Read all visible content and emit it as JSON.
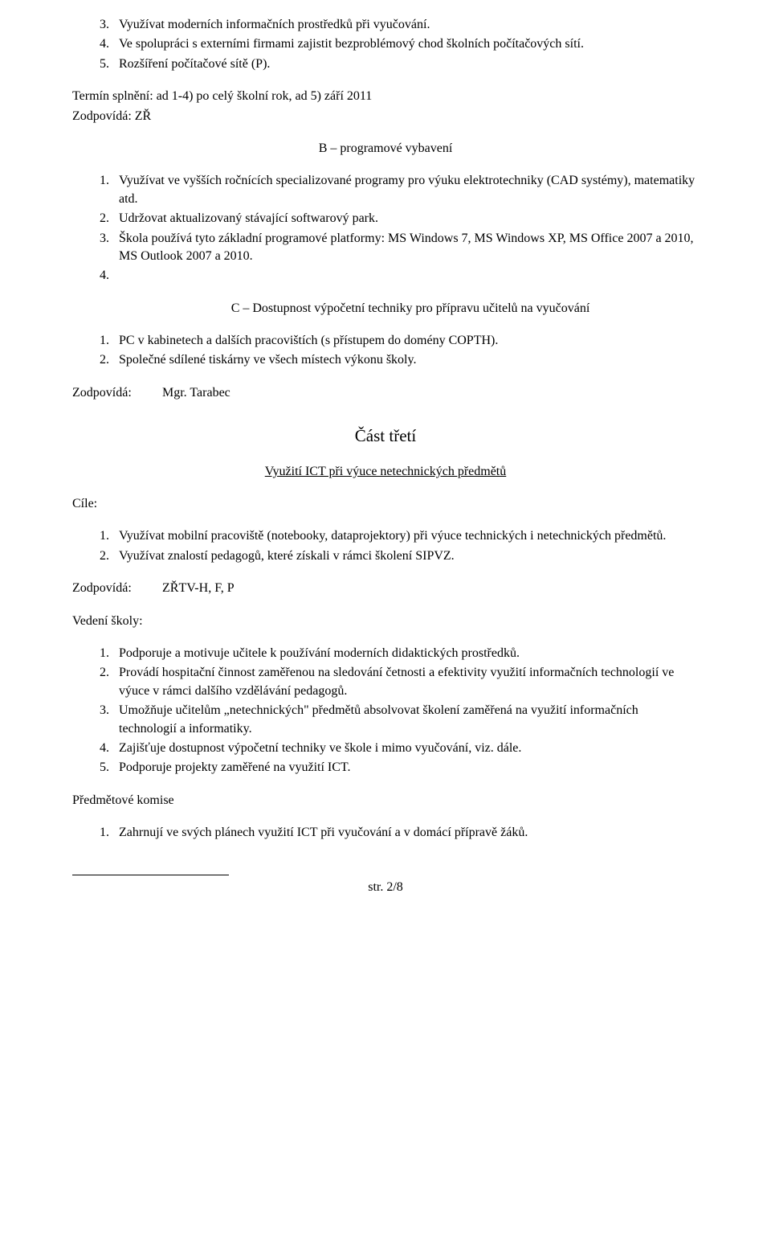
{
  "list1": {
    "item3_num": "3.",
    "item3_text": "Využívat moderních informačních prostředků při vyučování.",
    "item4_num": "4.",
    "item4_text": "Ve spolupráci s externími firmami zajistit bezproblémový chod školních počítačových sítí.",
    "item5_num": "5.",
    "item5_text": "Rozšíření počítačové sítě (P)."
  },
  "termin": {
    "line1": "Termín splnění: ad 1-4) po celý školní rok, ad 5) září 2011",
    "line2": "Zodpovídá: ZŘ"
  },
  "section_b_title": "B – programové vybavení",
  "list2": {
    "item1_num": "1.",
    "item1_text": "Využívat ve vyšších ročnících specializované programy pro výuku elektrotechniky (CAD systémy), matematiky atd.",
    "item2_num": "2.",
    "item2_text": "Udržovat aktualizovaný stávající softwarový park.",
    "item3_num": "3.",
    "item3_text": "Škola používá tyto základní programové platformy: MS Windows 7, MS Windows XP, MS Office 2007 a 2010, MS Outlook 2007 a 2010.",
    "item4_num": "4.",
    "item4_text": ""
  },
  "section_c_title": "C – Dostupnost výpočetní techniky pro přípravu učitelů na vyučování",
  "list3": {
    "item1_num": "1.",
    "item1_text": "PC v kabinetech a dalších pracovištích (s přístupem do domény COPTH).",
    "item2_num": "2.",
    "item2_text": "Společné sdílené tiskárny ve všech místech výkonu školy."
  },
  "zodpovida1": {
    "label": "Zodpovídá:",
    "value": "Mgr. Tarabec"
  },
  "part3_title": "Část třetí",
  "part3_subtitle": "Využití ICT při výuce netechnických předmětů",
  "cile_label": "Cíle:",
  "list4": {
    "item1_num": "1.",
    "item1_text": "Využívat mobilní pracoviště (notebooky, dataprojektory) při výuce technických i netechnických předmětů.",
    "item2_num": "2.",
    "item2_text": "Využívat znalostí pedagogů, které získali v rámci školení SIPVZ."
  },
  "zodpovida2": {
    "label": "Zodpovídá:",
    "value": "ZŘTV-H, F, P"
  },
  "vedeni_label": "Vedení školy:",
  "list5": {
    "item1_num": "1.",
    "item1_text": "Podporuje a motivuje učitele k používání moderních didaktických prostředků.",
    "item2_num": "2.",
    "item2_text": "Provádí hospitační činnost zaměřenou na sledování četnosti a efektivity využití informačních technologií ve výuce v rámci dalšího vzdělávání pedagogů.",
    "item3_num": "3.",
    "item3_text": "Umožňuje učitelům „netechnických\" předmětů absolvovat školení zaměřená na využití informačních technologií a informatiky.",
    "item4_num": "4.",
    "item4_text": "Zajišťuje dostupnost výpočetní techniky ve škole i mimo vyučování, viz. dále.",
    "item5_num": "5.",
    "item5_text": " Podporuje projekty zaměřené na využití ICT."
  },
  "komise_label": "Předmětové komise",
  "list6": {
    "item1_num": "1.",
    "item1_text": "Zahrnují ve svých plánech využití ICT při vyučování a v domácí přípravě žáků."
  },
  "footer_page": "str. 2/8"
}
